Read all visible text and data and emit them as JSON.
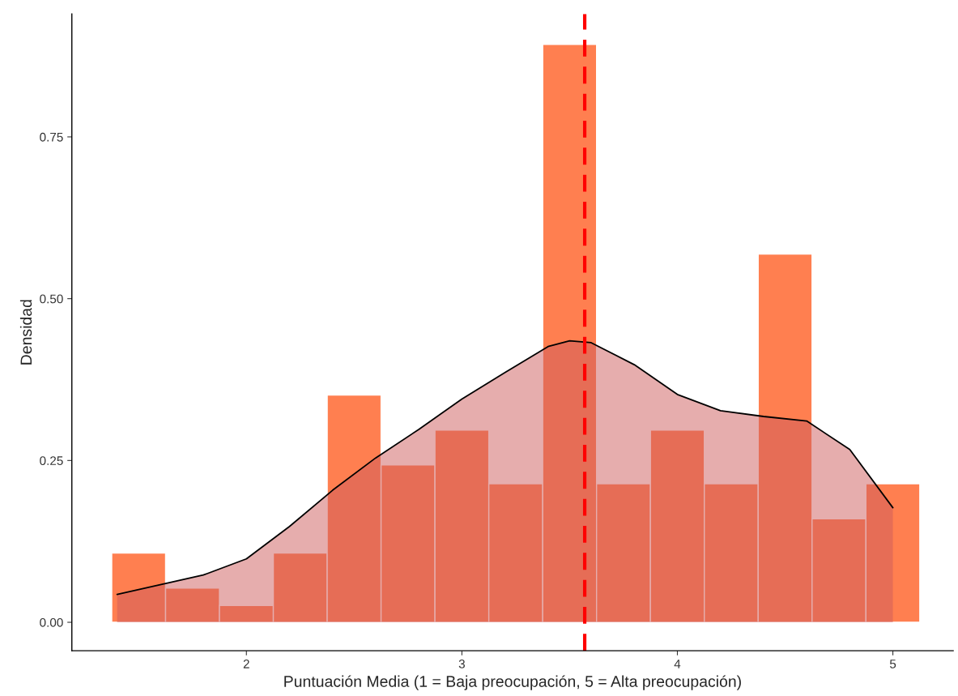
{
  "chart_data": {
    "type": "histogram",
    "xlabel": "Puntuación Media (1 = Baja preocupación, 5 = Alta preocupación)",
    "ylabel": "Densidad",
    "bins": [
      1.375,
      1.625,
      1.875,
      2.125,
      2.375,
      2.625,
      2.875,
      3.125,
      3.375,
      3.625,
      3.875,
      4.125,
      4.375,
      4.625,
      4.875,
      5.125
    ],
    "values": [
      0.107,
      0.053,
      0.026,
      0.107,
      0.351,
      0.243,
      0.297,
      0.214,
      0.893,
      0.214,
      0.297,
      0.214,
      0.569,
      0.16,
      0.214
    ],
    "color": "#ff7f50",
    "series": [
      {
        "type": "area",
        "color": "#cd5c5c",
        "x": [
          1.4,
          1.6,
          1.8,
          2.0,
          2.2,
          2.4,
          2.6,
          2.8,
          3.0,
          3.2,
          3.4,
          3.5,
          3.6,
          3.8,
          4.0,
          4.2,
          4.4,
          4.6,
          4.8,
          5.0
        ],
        "values": [
          0.043,
          0.058,
          0.073,
          0.098,
          0.148,
          0.204,
          0.254,
          0.298,
          0.345,
          0.386,
          0.426,
          0.435,
          0.432,
          0.398,
          0.352,
          0.327,
          0.318,
          0.311,
          0.267,
          0.177
        ]
      }
    ],
    "ref_lines": [
      {
        "axis": "x",
        "value": 3.57,
        "color": "#ff0000",
        "line_style": "dashed"
      }
    ],
    "xlim": [
      1.19,
      5.28
    ],
    "ylim": [
      -0.044,
      0.94
    ],
    "xticks": [
      2,
      3,
      4,
      5
    ],
    "yticks": [
      {
        "value": 0,
        "label": "0.00"
      },
      {
        "value": 0.25,
        "label": "0.25"
      },
      {
        "value": 0.5,
        "label": "0.50"
      },
      {
        "value": 0.75,
        "label": "0.75"
      }
    ],
    "grid": false,
    "legend": false
  }
}
